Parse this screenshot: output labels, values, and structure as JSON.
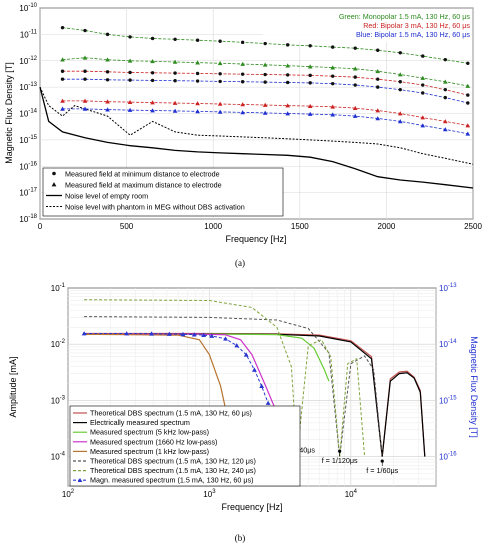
{
  "figure": {
    "panel_a_label": "(a)",
    "panel_b_label": "(b)"
  },
  "chart_data": [
    {
      "type": "line",
      "panel": "(a)",
      "xlabel": "Frequency [Hz]",
      "ylabel": "Magnetic Flux Density [T]",
      "xlim": [
        0,
        2500
      ],
      "ylim": [
        1e-18,
        1e-10
      ],
      "yscale": "log",
      "grid": true,
      "x_ticks": [
        "0",
        "500",
        "1000",
        "1500",
        "2000",
        "2500"
      ],
      "y_ticks": [
        "10^-18",
        "10^-17",
        "10^-16",
        "10^-15",
        "10^-14",
        "10^-13",
        "10^-12",
        "10^-11",
        "10^-10"
      ],
      "legend_top": [
        {
          "text": "Green: Monopolar 1.5 mA, 130 Hz, 60 μs",
          "color": "#2e8b1f"
        },
        {
          "text": "Red: Bipolar 3 mA, 130 Hz, 60 μs",
          "color": "#cc2222"
        },
        {
          "text": "Blue: Bipolar 1.5 mA, 130 Hz, 60 μs",
          "color": "#1f2fd0"
        }
      ],
      "legend": [
        "Measured field at minimum distance to electrode",
        "Measured field at maximum distance to electrode",
        "Noise level of empty room",
        "Noise level with phantom in MEG without DBS activation"
      ],
      "legend_placement": "bottom-left",
      "x": [
        130,
        260,
        390,
        520,
        650,
        780,
        910,
        1040,
        1170,
        1300,
        1430,
        1560,
        1690,
        1820,
        1950,
        2080,
        2210,
        2340,
        2470
      ],
      "series": [
        {
          "name": "Green min",
          "color": "#2e8b1f",
          "marker": "dot",
          "values": [
            1.8e-11,
            1.4e-11,
            1e-11,
            8e-12,
            7e-12,
            6.5e-12,
            6e-12,
            5.5e-12,
            5e-12,
            4.5e-12,
            4e-12,
            3.7e-12,
            3.3e-12,
            3e-12,
            2.5e-12,
            2e-12,
            1.5e-12,
            1.1e-12,
            8e-13
          ]
        },
        {
          "name": "Green max",
          "color": "#2e8b1f",
          "marker": "triangle",
          "values": [
            1.1e-12,
            1.3e-12,
            1.1e-12,
            1e-12,
            9.5e-13,
            9e-13,
            8.5e-13,
            8e-13,
            7.5e-13,
            7e-13,
            6.5e-13,
            6e-13,
            5.5e-13,
            5e-13,
            4e-13,
            3e-13,
            2.2e-13,
            1.6e-13,
            1.1e-13
          ]
        },
        {
          "name": "Red min",
          "color": "#cc2222",
          "marker": "dot",
          "values": [
            4e-13,
            4e-13,
            3.8e-13,
            3.6e-13,
            3.5e-13,
            3.4e-13,
            3.3e-13,
            3.2e-13,
            3.1e-13,
            3e-13,
            2.9e-13,
            2.8e-13,
            2.6e-13,
            2.4e-13,
            2e-13,
            1.6e-13,
            1.2e-13,
            8e-14,
            5e-14
          ]
        },
        {
          "name": "Blue min",
          "color": "#1f2fd0",
          "marker": "dot",
          "values": [
            2e-13,
            2e-13,
            1.9e-13,
            1.85e-13,
            1.8e-13,
            1.75e-13,
            1.7e-13,
            1.65e-13,
            1.6e-13,
            1.55e-13,
            1.5e-13,
            1.45e-13,
            1.35e-13,
            1.2e-13,
            1e-13,
            8e-14,
            6e-14,
            4e-14,
            2.5e-14
          ]
        },
        {
          "name": "Red max",
          "color": "#cc2222",
          "marker": "triangle",
          "values": [
            3e-14,
            3e-14,
            2.8e-14,
            2.7e-14,
            2.6e-14,
            2.5e-14,
            2.4e-14,
            2.3e-14,
            2.2e-14,
            2.1e-14,
            2e-14,
            1.9e-14,
            1.8e-14,
            1.6e-14,
            1.3e-14,
            1e-14,
            7e-15,
            5e-15,
            3.5e-15
          ]
        },
        {
          "name": "Blue max",
          "color": "#1f2fd0",
          "marker": "triangle",
          "values": [
            1.5e-14,
            1.5e-14,
            1.4e-14,
            1.35e-14,
            1.3e-14,
            1.25e-14,
            1.2e-14,
            1.15e-14,
            1.1e-14,
            1.05e-14,
            1e-14,
            9.5e-15,
            9e-15,
            8e-15,
            6.5e-15,
            5e-15,
            3.5e-15,
            2.5e-15,
            1.7e-15
          ]
        }
      ],
      "noise_empty_room": {
        "color": "#000000",
        "x": [
          0,
          50,
          130,
          260,
          390,
          520,
          650,
          780,
          910,
          1040,
          1170,
          1300,
          1430,
          1560,
          1690,
          1820,
          1950,
          2080,
          2210,
          2340,
          2500
        ],
        "values": [
          1e-13,
          5e-15,
          2e-15,
          1.2e-15,
          8e-16,
          6e-16,
          5e-16,
          4e-16,
          3.5e-16,
          3.2e-16,
          3e-16,
          2.8e-16,
          2.6e-16,
          2.2e-16,
          1.5e-16,
          8e-17,
          4e-17,
          3e-17,
          2.5e-17,
          2e-17,
          1.5e-17
        ]
      },
      "noise_phantom": {
        "color": "#000000",
        "x": [
          0,
          50,
          130,
          200,
          260,
          390,
          520,
          650,
          780,
          910,
          1040,
          1170,
          1300,
          1430,
          1560,
          1690,
          1820,
          1950,
          2080,
          2210,
          2340,
          2500
        ],
        "values": [
          1e-13,
          2e-14,
          8e-15,
          2e-14,
          1.5e-14,
          8e-15,
          1.5e-15,
          5e-15,
          2e-15,
          1.5e-15,
          1.4e-15,
          1.3e-15,
          1.2e-15,
          1.1e-15,
          1e-15,
          9e-16,
          8e-16,
          7e-16,
          5e-16,
          3e-16,
          2e-16,
          1.2e-16
        ]
      }
    },
    {
      "type": "line",
      "panel": "(b)",
      "xlabel": "Frequency [Hz]",
      "ylabel": "Amplitude [mA]",
      "ylabel_right": "Magnetic Flux Density [T]",
      "xscale": "log",
      "yscale": "log",
      "xlim": [
        100,
        40000
      ],
      "ylim": [
        3e-05,
        0.1
      ],
      "y2lim": [
        3e-17,
        1e-13
      ],
      "grid": true,
      "x_ticks": [
        "10^2",
        "10^3",
        "10^4"
      ],
      "y_ticks": [
        "10^-4",
        "10^-3",
        "10^-2",
        "10^-1"
      ],
      "y2_ticks": [
        "10^-16",
        "10^-15",
        "10^-14",
        "10^-13"
      ],
      "legend": [
        "Theoretical DBS spectrum (1.5 mA, 130 Hz, 60 μs)",
        "Electrically measured spectrum",
        "Measured spectrum (5 kHz low-pass)",
        "Measured spectrum (1660 Hz low-pass)",
        "Measured spectrum (1 kHz low-pass)",
        "Theoretical DBS spectrum (1.5 mA, 130 Hz, 120 μs)",
        "Theoretical DBS spectrum (1.5 mA, 130 Hz, 240 μs)",
        "Magn. measured spectrum (1.5 mA, 130 Hz, 60 μs)"
      ],
      "legend_placement": "bottom-left",
      "annotations": [
        {
          "text": "f = 1/240μs",
          "x": 4167,
          "y": 0.00014
        },
        {
          "text": "f = 1/120μs",
          "x": 8333,
          "y": 9e-05
        },
        {
          "text": "f = 1/60μs",
          "x": 16667,
          "y": 6e-05
        }
      ],
      "series": [
        {
          "name": "Theoretical DBS spectrum (1.5 mA, 130 Hz, 60 μs)",
          "color": "#c0504d",
          "style": "solid",
          "x": [
            130,
            500,
            1000,
            3000,
            6000,
            10000,
            14000,
            16667,
            19000,
            22000,
            25000,
            28000,
            31000,
            33333
          ],
          "values": [
            0.0155,
            0.0155,
            0.0155,
            0.0153,
            0.0145,
            0.0115,
            0.006,
            0.0001,
            0.0024,
            0.0032,
            0.0033,
            0.0026,
            0.0015,
            0.0001
          ]
        },
        {
          "name": "Electrically measured spectrum",
          "color": "#000000",
          "style": "solid",
          "x": [
            130,
            500,
            1000,
            3000,
            6000,
            10000,
            14000,
            16667,
            19000,
            22000,
            25000,
            28000,
            31000,
            33333
          ],
          "values": [
            0.015,
            0.0152,
            0.0153,
            0.015,
            0.014,
            0.011,
            0.0055,
            0.0001,
            0.0022,
            0.003,
            0.0031,
            0.0025,
            0.0014,
            0.0001
          ]
        },
        {
          "name": "Measured spectrum (5 kHz low-pass)",
          "color": "#66cc33",
          "style": "solid",
          "x": [
            130,
            1000,
            3000,
            4500,
            5500,
            6500,
            7000
          ],
          "values": [
            0.015,
            0.0152,
            0.0148,
            0.0128,
            0.0085,
            0.0035,
            0.0022
          ]
        },
        {
          "name": "Measured spectrum (1660 Hz low-pass)",
          "color": "#cc33cc",
          "style": "solid",
          "x": [
            130,
            800,
            1300,
            1660,
            2000,
            2500,
            3000
          ],
          "values": [
            0.015,
            0.0152,
            0.0147,
            0.012,
            0.0065,
            0.0018,
            0.0006
          ]
        },
        {
          "name": "Measured spectrum (1 kHz low-pass)",
          "color": "#b8742f",
          "style": "solid",
          "x": [
            130,
            600,
            850,
            1000,
            1200,
            1400,
            1600
          ],
          "values": [
            0.015,
            0.0145,
            0.012,
            0.0065,
            0.0018,
            0.0003,
            5e-05
          ]
        },
        {
          "name": "Theoretical DBS spectrum (1.5 mA, 130 Hz, 120 μs)",
          "color": "#555555",
          "style": "dashed",
          "x": [
            130,
            1000,
            3000,
            5000,
            7000,
            8333,
            10000,
            12500,
            14500,
            16667
          ],
          "values": [
            0.031,
            0.03,
            0.027,
            0.019,
            0.007,
            0.0001,
            0.0045,
            0.0062,
            0.0035,
            0.0001
          ]
        },
        {
          "name": "Theoretical DBS spectrum (1.5 mA, 130 Hz, 240 μs)",
          "color": "#7fa33c",
          "style": "dashed",
          "x": [
            130,
            1000,
            2000,
            3000,
            3800,
            4167,
            5000,
            6200,
            7200,
            8333,
            9500,
            11000,
            12500
          ],
          "values": [
            0.062,
            0.06,
            0.045,
            0.02,
            0.004,
            0.0001,
            0.0095,
            0.012,
            0.006,
            0.0001,
            0.0045,
            0.0055,
            0.0001
          ]
        },
        {
          "name": "Magn. measured spectrum (1.5 mA, 130 Hz, 60 μs)",
          "color": "#2a36d0",
          "style": "dashed",
          "marker": "triangle",
          "x": [
            130,
            260,
            390,
            520,
            650,
            780,
            910,
            1040,
            1300,
            1560,
            1820,
            2080,
            2340,
            2600,
            2860
          ],
          "values": [
            0.0155,
            0.0155,
            0.0154,
            0.0152,
            0.015,
            0.0148,
            0.0145,
            0.014,
            0.0125,
            0.0095,
            0.0065,
            0.0035,
            0.0018,
            0.0009,
            0.0005
          ]
        }
      ]
    }
  ]
}
